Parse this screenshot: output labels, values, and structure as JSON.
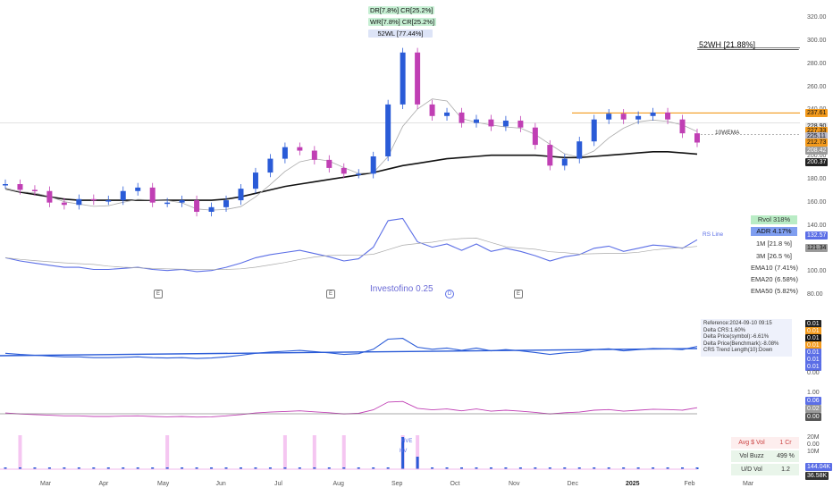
{
  "top_tags": {
    "dr": "DR[7.8%] CR[25.2%]",
    "wr": "WR[7.8%] CR[25.2%]",
    "wl52": "52WL [77.44%]",
    "wh52": "52WH [21.88%]"
  },
  "price_axis": [
    "320.00",
    "300.00",
    "280.00",
    "260.00",
    "240.00",
    "220.00",
    "200.00",
    "180.00",
    "160.00",
    "140.00",
    "120.00",
    "100.00",
    "80.00"
  ],
  "price_tags": [
    {
      "text": "237.61",
      "color": "#f29a1d"
    },
    {
      "text": "228.90",
      "color": "#e8e8e8"
    },
    {
      "text": "227.33",
      "color": "#f29a1d"
    },
    {
      "text": "225.11",
      "color": "#b8b8c8"
    },
    {
      "text": "212.73",
      "color": "#f29a1d"
    },
    {
      "text": "208.42",
      "color": "#9a9a9a"
    },
    {
      "text": "200.37",
      "color": "#222222"
    }
  ],
  "wema_label": "10WEMA",
  "rs_label": "RS Line",
  "rs_tags": [
    {
      "text": "132.57",
      "color": "#5b6ee6"
    },
    {
      "text": "121.34",
      "color": "#9a9a9a"
    }
  ],
  "stats": {
    "rvol": "Rvol 318%",
    "adr": "ADR 4.17%",
    "m1": "1M [21.8 %]",
    "m3": "3M [26.5 %]",
    "ema10": "EMA10 (7.41%)",
    "ema20": "EMA20 (6.58%)",
    "ema50": "EMA50 (5.82%)"
  },
  "watermark": "Investofino  0.25",
  "event_badges": [
    "E",
    "E",
    "D",
    "E"
  ],
  "crs_info": [
    "Reference:2024-09-10 09:15",
    "Delta CRS:1.60%",
    "Delta Price(symbol):-6.61%",
    "Delta Price(Benchmark):-8.08%",
    "CRS Trend Length(10):Down"
  ],
  "crs_tags": [
    {
      "text": "0.01",
      "color": "#222222"
    },
    {
      "text": "0.01",
      "color": "#f29a1d"
    },
    {
      "text": "0.01",
      "color": "#111111"
    },
    {
      "text": "0.01",
      "color": "#f29a1d"
    },
    {
      "text": "0.01",
      "color": "#5b6ee6"
    },
    {
      "text": "0.01",
      "color": "#5b6ee6"
    },
    {
      "text": "0.01",
      "color": "#5b6ee6"
    }
  ],
  "crs_axis": [
    "0.00"
  ],
  "osc_axis": [
    "1.00",
    "0.00"
  ],
  "osc_tags": [
    {
      "text": "0.06",
      "color": "#5b6ee6"
    },
    {
      "text": "0.02",
      "color": "#9a9a9a"
    },
    {
      "text": "0.00",
      "color": "#555555"
    }
  ],
  "vol_axis": [
    "20M",
    "10M"
  ],
  "vol_tags": [
    {
      "text": "144.04K",
      "color": "#5b6ee6"
    },
    {
      "text": "36.58K",
      "color": "#333333"
    }
  ],
  "vol_table": [
    {
      "label": "Avg $ Vol",
      "value": "1 Cr"
    },
    {
      "label": "Vol Buzz",
      "value": "499 %"
    },
    {
      "label": "U/D Vol",
      "value": "1.2"
    }
  ],
  "vol_letters": [
    "HVE",
    "HV"
  ],
  "months": [
    "Mar",
    "Apr",
    "May",
    "Jun",
    "Jul",
    "Aug",
    "Sep",
    "Oct",
    "Nov",
    "Dec",
    "2025",
    "Feb",
    "Mar"
  ],
  "chart_data": {
    "type": "candlestick",
    "title": "",
    "x": [
      "2024-02-26",
      "2024-03-04",
      "2024-03-11",
      "2024-03-18",
      "2024-03-25",
      "2024-04-01",
      "2024-04-08",
      "2024-04-15",
      "2024-04-22",
      "2024-04-29",
      "2024-05-06",
      "2024-05-13",
      "2024-05-20",
      "2024-05-27",
      "2024-06-03",
      "2024-06-10",
      "2024-06-17",
      "2024-06-24",
      "2024-07-01",
      "2024-07-08",
      "2024-07-15",
      "2024-07-22",
      "2024-07-29",
      "2024-08-05",
      "2024-08-12",
      "2024-08-19",
      "2024-08-26",
      "2024-09-02",
      "2024-09-09",
      "2024-09-16",
      "2024-09-23",
      "2024-09-30",
      "2024-10-07",
      "2024-10-14",
      "2024-10-21",
      "2024-10-28",
      "2024-11-04",
      "2024-11-11",
      "2024-11-18",
      "2024-11-25",
      "2024-12-02",
      "2024-12-09",
      "2024-12-16",
      "2024-12-23",
      "2024-12-30",
      "2025-01-06",
      "2025-01-13",
      "2025-01-20"
    ],
    "close": [
      176,
      171,
      170,
      160,
      158,
      163,
      162,
      162,
      170,
      173,
      160,
      160,
      162,
      152,
      156,
      162,
      172,
      186,
      198,
      208,
      205,
      197,
      190,
      185,
      185,
      200,
      245,
      290,
      245,
      235,
      238,
      229,
      232,
      226,
      231,
      225,
      210,
      192,
      198,
      213,
      232,
      237,
      232,
      235,
      238,
      232,
      220,
      212
    ],
    "ylim": [
      80,
      330
    ],
    "ema_long": [
      172,
      169,
      167,
      165,
      163,
      162,
      162,
      162,
      162,
      162,
      162,
      162,
      162,
      162,
      162,
      163,
      165,
      168,
      171,
      174,
      176,
      178,
      180,
      182,
      184,
      186,
      189,
      192,
      194,
      196,
      198,
      199,
      200,
      201,
      201,
      201,
      201,
      200,
      199,
      199,
      200,
      201,
      202,
      203,
      204,
      204,
      203,
      202
    ],
    "rs_line": [
      115,
      112,
      110,
      108,
      106,
      106,
      104,
      104,
      105,
      106,
      104,
      103,
      104,
      102,
      103,
      106,
      110,
      115,
      118,
      120,
      122,
      119,
      116,
      112,
      114,
      125,
      150,
      152,
      130,
      125,
      128,
      122,
      128,
      121,
      124,
      121,
      117,
      112,
      116,
      118,
      124,
      126,
      121,
      124,
      127,
      126,
      124,
      132
    ],
    "volume_highlights": [
      "2024-03-04",
      "2024-05-13",
      "2024-07-08",
      "2024-07-22",
      "2024-08-05",
      "2024-09-02",
      "2024-09-09"
    ],
    "last_close": 212.73
  }
}
